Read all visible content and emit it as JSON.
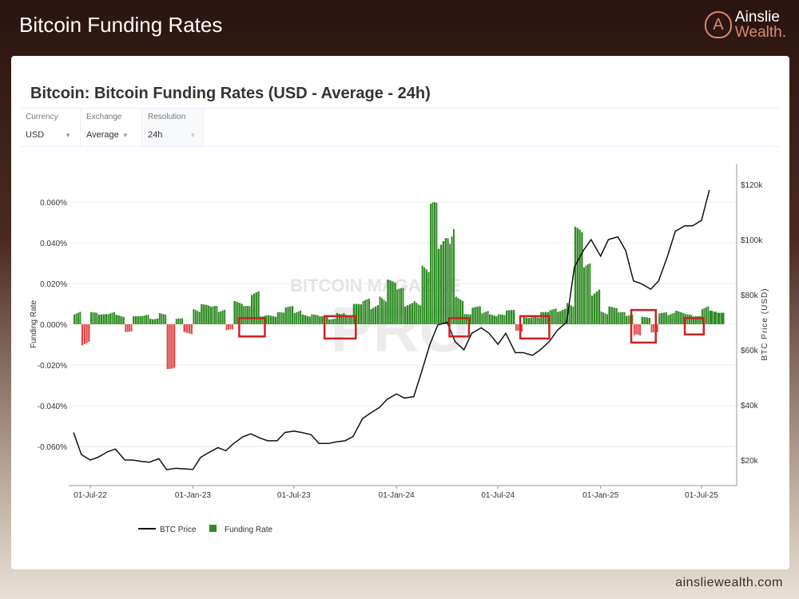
{
  "header": {
    "title": "Bitcoin Funding Rates",
    "logo_line1": "Ainslie",
    "logo_line2": "Wealth.",
    "logo_mark": "A"
  },
  "controls": [
    {
      "label": "Currency",
      "value": "USD"
    },
    {
      "label": "Exchange",
      "value": "Average"
    },
    {
      "label": "Resolution",
      "value": "24h"
    }
  ],
  "footer": "ainsliewealth.com",
  "watermark": "BITCOIN MAGAZINE PRO",
  "colors": {
    "positive": "#2e8b23",
    "negative": "#e04848",
    "price": "#111111",
    "highlight": "#cc2222"
  },
  "chart_data": {
    "type": "bar+line",
    "title": "Bitcoin: Bitcoin Funding Rates (USD - Average - 24h)",
    "ylabel": "Funding Rate",
    "y2label": "BTC Price (USD)",
    "yticks": [
      "0.060%",
      "0.040%",
      "0.020%",
      "0.000%",
      "-0.020%",
      "-0.040%",
      "-0.060%"
    ],
    "ytick_values": [
      0.06,
      0.04,
      0.02,
      0,
      -0.02,
      -0.04,
      -0.06
    ],
    "y2ticks": [
      "$120k",
      "$100k",
      "$80k",
      "$60k",
      "$40k",
      "$20k"
    ],
    "y2tick_values": [
      120,
      100,
      80,
      60,
      40,
      20
    ],
    "xticks": [
      "01-Jul-22",
      "01-Jan-23",
      "01-Jul-23",
      "01-Jan-24",
      "01-Jul-24",
      "01-Jan-25",
      "01-Jul-25"
    ],
    "xtick_dates": [
      "2022-07-01",
      "2023-01-01",
      "2023-07-01",
      "2024-01-01",
      "2024-07-01",
      "2025-01-01",
      "2025-07-01"
    ],
    "grid": true,
    "legend": "bottom-left",
    "legend_entries": [
      "BTC Price",
      "Funding Rate"
    ],
    "dates": [
      "2022-06-01",
      "2022-06-15",
      "2022-07-01",
      "2022-07-15",
      "2022-08-01",
      "2022-08-15",
      "2022-09-01",
      "2022-09-15",
      "2022-10-01",
      "2022-10-15",
      "2022-11-01",
      "2022-11-15",
      "2022-12-01",
      "2022-12-15",
      "2023-01-01",
      "2023-01-15",
      "2023-02-01",
      "2023-02-15",
      "2023-03-01",
      "2023-03-15",
      "2023-04-01",
      "2023-04-15",
      "2023-05-01",
      "2023-05-15",
      "2023-06-01",
      "2023-06-15",
      "2023-07-01",
      "2023-07-15",
      "2023-08-01",
      "2023-08-15",
      "2023-09-01",
      "2023-09-15",
      "2023-10-01",
      "2023-10-15",
      "2023-11-01",
      "2023-11-15",
      "2023-12-01",
      "2023-12-15",
      "2024-01-01",
      "2024-01-15",
      "2024-02-01",
      "2024-02-15",
      "2024-03-01",
      "2024-03-15",
      "2024-04-01",
      "2024-04-15",
      "2024-05-01",
      "2024-05-15",
      "2024-06-01",
      "2024-06-15",
      "2024-07-01",
      "2024-07-15",
      "2024-08-01",
      "2024-08-15",
      "2024-09-01",
      "2024-09-15",
      "2024-10-01",
      "2024-10-15",
      "2024-11-01",
      "2024-11-15",
      "2024-12-01",
      "2024-12-15",
      "2025-01-01",
      "2025-01-15",
      "2025-02-01",
      "2025-02-15",
      "2025-03-01",
      "2025-03-15",
      "2025-04-01",
      "2025-04-15",
      "2025-05-01",
      "2025-05-15",
      "2025-06-01",
      "2025-06-15",
      "2025-07-01",
      "2025-07-15"
    ],
    "series": [
      {
        "name": "Funding Rate",
        "unit": "%",
        "values": [
          0.008,
          -0.012,
          0.006,
          0.005,
          0.007,
          0.006,
          -0.004,
          0.004,
          0.005,
          0.004,
          0.006,
          -0.022,
          0.003,
          -0.006,
          0.009,
          0.01,
          0.009,
          0.008,
          -0.004,
          0.012,
          0.009,
          0.017,
          0.006,
          0.005,
          0.006,
          0.009,
          0.008,
          0.006,
          0.005,
          0.004,
          0.003,
          0.008,
          0.005,
          0.01,
          0.013,
          0.012,
          0.016,
          0.022,
          0.018,
          0.012,
          0.015,
          0.03,
          0.06,
          0.045,
          0.065,
          0.015,
          0.005,
          0.009,
          0.008,
          0.006,
          0.005,
          0.007,
          -0.004,
          0.005,
          0.004,
          0.006,
          0.008,
          0.01,
          0.012,
          0.048,
          0.03,
          0.02,
          0.008,
          0.009,
          0.006,
          0.005,
          -0.008,
          0.004,
          -0.004,
          0.006,
          0.007,
          0.008,
          0.005,
          0.004,
          0.01,
          0.009
        ]
      },
      {
        "name": "BTC Price",
        "unit": "USD k",
        "values": [
          30,
          22,
          20,
          21,
          23,
          24,
          20,
          20,
          19.5,
          19.2,
          20.5,
          16.5,
          17,
          16.8,
          16.6,
          21,
          23,
          24.5,
          23.4,
          26,
          28.5,
          29.5,
          28,
          27,
          27,
          30,
          30.5,
          30,
          29.2,
          26,
          26,
          26.6,
          27,
          28.5,
          35,
          37,
          39,
          42,
          44,
          42.5,
          43,
          52,
          62,
          69,
          70,
          63,
          60,
          66,
          68,
          66,
          62,
          66,
          59,
          59,
          58,
          60,
          63,
          67,
          70,
          90,
          96,
          100,
          94,
          100,
          101,
          96,
          85,
          84,
          82,
          85,
          94,
          103,
          105,
          105,
          107,
          118
        ]
      }
    ],
    "highlight_ranges": [
      {
        "start": "2023-03-25",
        "end": "2023-05-10",
        "rate_min": -0.006,
        "rate_max": 0.003
      },
      {
        "start": "2023-08-25",
        "end": "2023-10-20",
        "rate_min": -0.007,
        "rate_max": 0.004
      },
      {
        "start": "2024-04-05",
        "end": "2024-05-10",
        "rate_min": -0.006,
        "rate_max": 0.003
      },
      {
        "start": "2024-08-10",
        "end": "2024-10-01",
        "rate_min": -0.007,
        "rate_max": 0.004
      },
      {
        "start": "2025-02-25",
        "end": "2025-04-10",
        "rate_min": -0.009,
        "rate_max": 0.007
      },
      {
        "start": "2025-06-01",
        "end": "2025-07-05",
        "rate_min": -0.005,
        "rate_max": 0.003
      }
    ]
  }
}
